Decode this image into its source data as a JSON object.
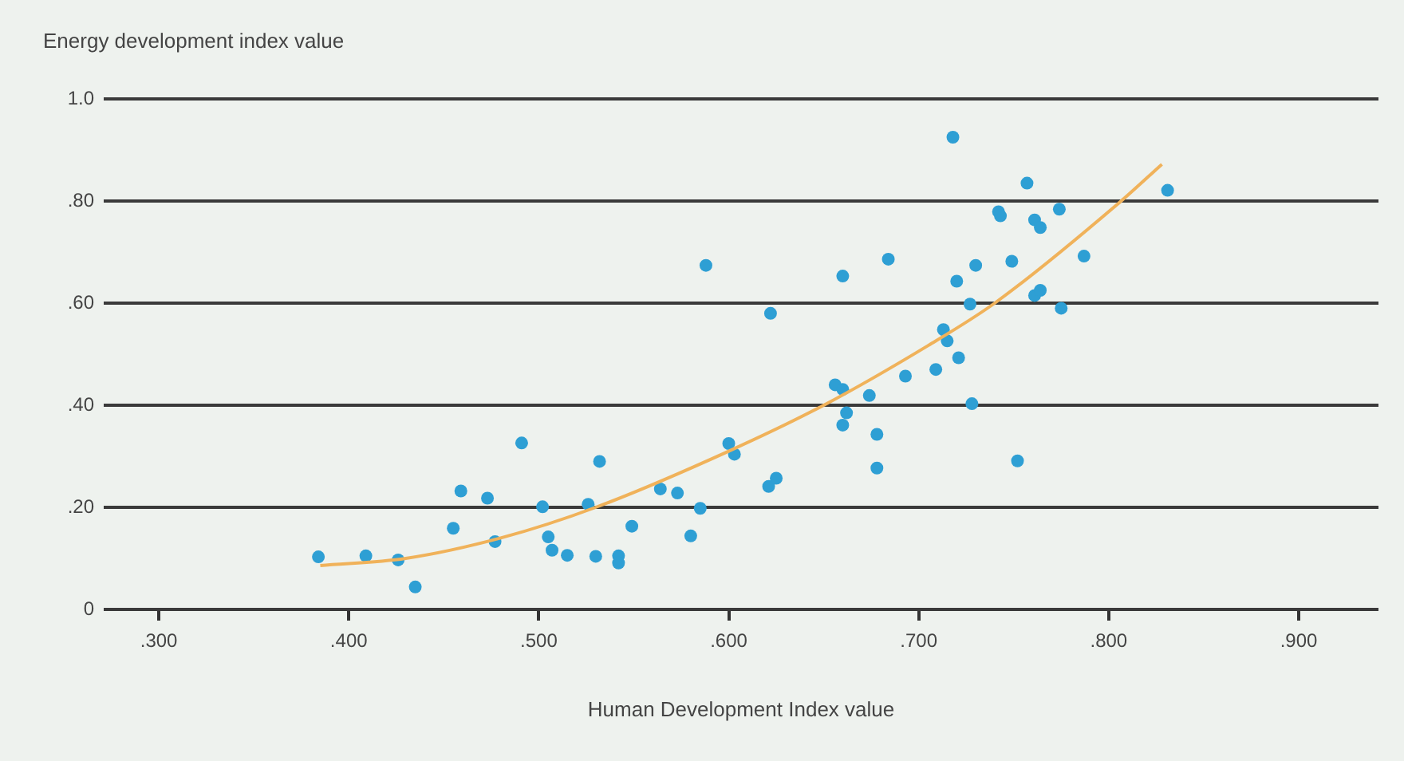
{
  "chart_data": {
    "type": "scatter",
    "xlabel": "Human Development Index value",
    "ylabel": "Energy development index value",
    "xlim": [
      0.271,
      0.942
    ],
    "ylim": [
      0,
      1.0
    ],
    "xticks": [
      {
        "value": 0.3,
        "label": ".300"
      },
      {
        "value": 0.4,
        "label": ".400"
      },
      {
        "value": 0.5,
        "label": ".500"
      },
      {
        "value": 0.6,
        "label": ".600"
      },
      {
        "value": 0.7,
        "label": ".700"
      },
      {
        "value": 0.8,
        "label": ".800"
      },
      {
        "value": 0.9,
        "label": ".900"
      }
    ],
    "yticks": [
      {
        "value": 0,
        "label": "0"
      },
      {
        "value": 0.2,
        "label": ".20"
      },
      {
        "value": 0.4,
        "label": ".40"
      },
      {
        "value": 0.6,
        "label": ".60"
      },
      {
        "value": 0.8,
        "label": ".80"
      },
      {
        "value": 1.0,
        "label": "1.0"
      }
    ],
    "grid": "y",
    "legend": false,
    "marker": "circle",
    "series": [
      {
        "color": "#2e9fd4",
        "x": [
          0.384,
          0.409,
          0.426,
          0.435,
          0.455,
          0.459,
          0.473,
          0.477,
          0.491,
          0.502,
          0.505,
          0.507,
          0.515,
          0.526,
          0.532,
          0.53,
          0.542,
          0.542,
          0.549,
          0.564,
          0.573,
          0.58,
          0.585,
          0.588,
          0.622,
          0.6,
          0.603,
          0.621,
          0.625,
          0.66,
          0.656,
          0.66,
          0.662,
          0.66,
          0.674,
          0.678,
          0.678,
          0.684,
          0.693,
          0.709,
          0.713,
          0.715,
          0.721,
          0.728,
          0.72,
          0.727,
          0.73,
          0.752,
          0.749,
          0.743,
          0.761,
          0.764,
          0.775,
          0.761,
          0.764,
          0.787,
          0.718,
          0.757,
          0.742,
          0.774,
          0.831
        ],
        "values": [
          0.103,
          0.105,
          0.097,
          0.044,
          0.159,
          0.232,
          0.218,
          0.133,
          0.326,
          0.201,
          0.142,
          0.116,
          0.106,
          0.206,
          0.29,
          0.104,
          0.105,
          0.091,
          0.163,
          0.236,
          0.228,
          0.144,
          0.198,
          0.674,
          0.58,
          0.325,
          0.304,
          0.241,
          0.257,
          0.653,
          0.44,
          0.431,
          0.385,
          0.361,
          0.419,
          0.343,
          0.277,
          0.686,
          0.457,
          0.47,
          0.548,
          0.526,
          0.493,
          0.403,
          0.643,
          0.598,
          0.674,
          0.291,
          0.682,
          0.771,
          0.763,
          0.748,
          0.59,
          0.615,
          0.625,
          0.692,
          0.925,
          0.835,
          0.779,
          0.784,
          0.821
        ]
      },
      {
        "type": "line",
        "color": "#f0b25a",
        "marker": "none",
        "x": [
          0.385,
          0.43,
          0.48,
          0.53,
          0.6,
          0.65,
          0.705,
          0.74,
          0.805,
          0.828
        ],
        "values": [
          0.086,
          0.1,
          0.14,
          0.2,
          0.31,
          0.4,
          0.517,
          0.6,
          0.795,
          0.872
        ]
      }
    ]
  }
}
